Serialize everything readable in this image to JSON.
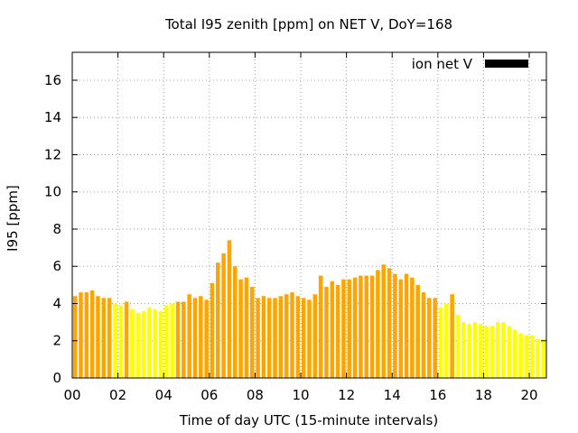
{
  "chart_data": {
    "type": "bar",
    "title": "Total I95 zenith [ppm] on NET V, DoY=168",
    "xlabel": "Time of day UTC (15-minute intervals)",
    "ylabel": "I95 [ppm]",
    "xlim": [
      0,
      20.75
    ],
    "ylim": [
      0,
      17.5
    ],
    "x_ticks": [
      "00",
      "02",
      "04",
      "06",
      "08",
      "10",
      "12",
      "14",
      "16",
      "18",
      "20"
    ],
    "y_ticks": [
      "0",
      "2",
      "4",
      "6",
      "8",
      "10",
      "12",
      "14",
      "16"
    ],
    "grid": true,
    "legend": {
      "label": "ion net V",
      "position": "top-right",
      "color": "#000000"
    },
    "interval_hours": 0.25,
    "colors": {
      "high": "#ffa500",
      "low": "#ffff00"
    },
    "values": [
      4.4,
      4.6,
      4.6,
      4.7,
      4.4,
      4.3,
      4.3,
      4.0,
      3.9,
      4.1,
      3.7,
      3.5,
      3.6,
      3.8,
      3.7,
      3.6,
      3.9,
      4.0,
      4.1,
      4.1,
      4.5,
      4.3,
      4.4,
      4.2,
      5.1,
      6.2,
      6.7,
      7.4,
      6.0,
      5.3,
      5.4,
      4.9,
      4.3,
      4.4,
      4.3,
      4.3,
      4.4,
      4.5,
      4.6,
      4.4,
      4.3,
      4.2,
      4.5,
      5.5,
      4.9,
      5.2,
      5.0,
      5.3,
      5.3,
      5.4,
      5.5,
      5.5,
      5.5,
      5.8,
      6.1,
      5.9,
      5.6,
      5.3,
      5.6,
      5.4,
      5.0,
      4.6,
      4.3,
      4.3,
      3.8,
      4.0,
      4.5,
      3.4,
      3.0,
      2.9,
      3.0,
      2.9,
      2.8,
      2.8,
      3.0,
      3.0,
      2.8,
      2.6,
      2.4,
      2.3,
      2.3,
      2.1,
      2.1
    ],
    "levels": [
      "high",
      "high",
      "high",
      "high",
      "high",
      "high",
      "high",
      "low",
      "low",
      "high",
      "low",
      "low",
      "low",
      "low",
      "low",
      "low",
      "low",
      "low",
      "high",
      "high",
      "high",
      "high",
      "high",
      "high",
      "high",
      "high",
      "high",
      "high",
      "high",
      "high",
      "high",
      "high",
      "high",
      "high",
      "high",
      "high",
      "high",
      "high",
      "high",
      "high",
      "high",
      "high",
      "high",
      "high",
      "high",
      "high",
      "high",
      "high",
      "high",
      "high",
      "high",
      "high",
      "high",
      "high",
      "high",
      "high",
      "high",
      "high",
      "high",
      "high",
      "high",
      "high",
      "high",
      "high",
      "low",
      "low",
      "high",
      "low",
      "low",
      "low",
      "low",
      "low",
      "low",
      "low",
      "low",
      "low",
      "low",
      "low",
      "low",
      "low",
      "low",
      "low",
      "low"
    ]
  }
}
